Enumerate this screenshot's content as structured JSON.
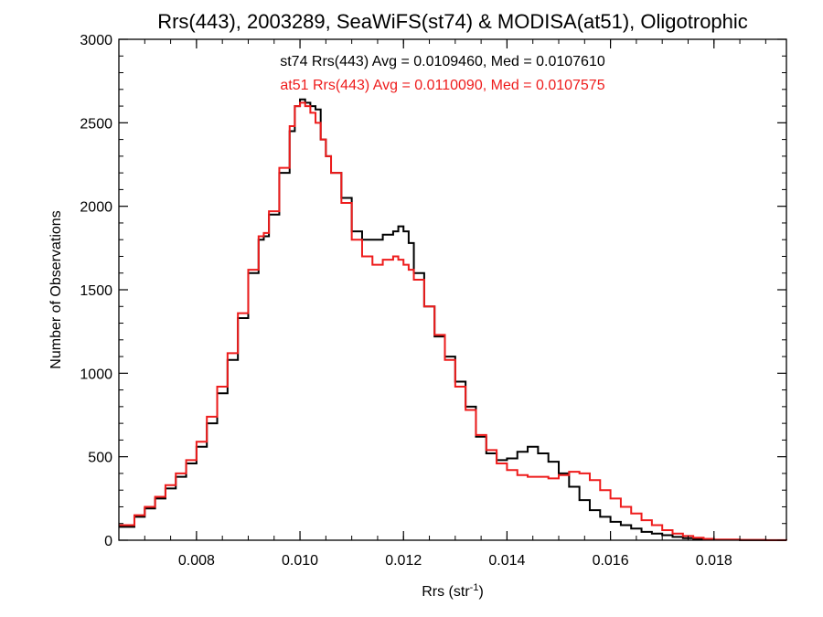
{
  "chart_data": {
    "type": "line",
    "title": "Rrs(443), 2003289, SeaWiFS(st74) & MODISA(at51), Oligotrophic",
    "xlabel_base": "Rrs (str",
    "xlabel_sup": "-1",
    "xlabel_end": ")",
    "ylabel": "Number of Observations",
    "xlim": [
      0.0065,
      0.0194
    ],
    "ylim": [
      0,
      3000
    ],
    "x_ticks": [
      0.008,
      0.01,
      0.012,
      0.014,
      0.016,
      0.018
    ],
    "x_tick_labels": [
      "0.008",
      "0.010",
      "0.012",
      "0.014",
      "0.016",
      "0.018"
    ],
    "y_ticks": [
      0,
      500,
      1000,
      1500,
      2000,
      2500,
      3000
    ],
    "y_tick_labels": [
      "0",
      "500",
      "1000",
      "1500",
      "2000",
      "2500",
      "3000"
    ],
    "grid": false,
    "annotations": [
      {
        "text": "st74 Rrs(443) Avg = 0.0109460, Med = 0.0107610",
        "color": "#000000"
      },
      {
        "text": "at51 Rrs(443) Avg = 0.0110090, Med = 0.0107575",
        "color": "#ee1c1c"
      }
    ],
    "series": [
      {
        "color": "#000000",
        "x": [
          0.0065,
          0.0068,
          0.007,
          0.0072,
          0.0074,
          0.0076,
          0.0078,
          0.008,
          0.0082,
          0.0084,
          0.0086,
          0.0088,
          0.009,
          0.0092,
          0.0093,
          0.0094,
          0.0096,
          0.0098,
          0.0099,
          0.01,
          0.0101,
          0.0102,
          0.0103,
          0.0104,
          0.0105,
          0.0106,
          0.0108,
          0.011,
          0.0112,
          0.0114,
          0.0116,
          0.0118,
          0.0119,
          0.012,
          0.0121,
          0.0122,
          0.0124,
          0.0126,
          0.0128,
          0.013,
          0.0132,
          0.0134,
          0.0136,
          0.0138,
          0.014,
          0.0142,
          0.0144,
          0.0146,
          0.0148,
          0.015,
          0.0152,
          0.0154,
          0.0156,
          0.0158,
          0.016,
          0.0162,
          0.0164,
          0.0166,
          0.0168,
          0.017,
          0.0172,
          0.0174,
          0.0176,
          0.0178,
          0.018,
          0.0185,
          0.019,
          0.0194
        ],
        "y": [
          80,
          140,
          190,
          250,
          310,
          380,
          460,
          560,
          700,
          880,
          1080,
          1330,
          1600,
          1800,
          1820,
          1950,
          2200,
          2450,
          2600,
          2640,
          2620,
          2600,
          2580,
          2400,
          2300,
          2200,
          2050,
          1850,
          1800,
          1800,
          1830,
          1850,
          1880,
          1850,
          1780,
          1600,
          1400,
          1220,
          1100,
          950,
          800,
          620,
          520,
          480,
          490,
          530,
          560,
          520,
          470,
          400,
          320,
          240,
          180,
          140,
          110,
          90,
          70,
          50,
          40,
          30,
          20,
          12,
          8,
          5,
          3,
          1,
          0,
          0
        ]
      },
      {
        "color": "#ee1c1c",
        "x": [
          0.0065,
          0.0068,
          0.007,
          0.0072,
          0.0074,
          0.0076,
          0.0078,
          0.008,
          0.0082,
          0.0084,
          0.0086,
          0.0088,
          0.009,
          0.0092,
          0.0093,
          0.0094,
          0.0096,
          0.0098,
          0.0099,
          0.01,
          0.0101,
          0.0102,
          0.0103,
          0.0104,
          0.0105,
          0.0106,
          0.0108,
          0.011,
          0.0112,
          0.0114,
          0.0116,
          0.0118,
          0.0119,
          0.012,
          0.0121,
          0.0122,
          0.0124,
          0.0126,
          0.0128,
          0.013,
          0.0132,
          0.0134,
          0.0136,
          0.0138,
          0.014,
          0.0142,
          0.0144,
          0.0146,
          0.0148,
          0.015,
          0.0152,
          0.0154,
          0.0156,
          0.0158,
          0.016,
          0.0162,
          0.0164,
          0.0166,
          0.0168,
          0.017,
          0.0172,
          0.0174,
          0.0176,
          0.0178,
          0.018,
          0.0185,
          0.019,
          0.0194
        ],
        "y": [
          90,
          150,
          200,
          260,
          330,
          400,
          480,
          590,
          740,
          920,
          1120,
          1360,
          1620,
          1820,
          1840,
          1970,
          2230,
          2480,
          2600,
          2620,
          2600,
          2560,
          2500,
          2400,
          2300,
          2200,
          2020,
          1800,
          1700,
          1650,
          1680,
          1700,
          1680,
          1650,
          1620,
          1560,
          1400,
          1230,
          1080,
          920,
          780,
          630,
          540,
          460,
          420,
          390,
          380,
          380,
          370,
          390,
          410,
          400,
          360,
          300,
          250,
          200,
          160,
          120,
          90,
          60,
          40,
          25,
          15,
          8,
          4,
          2,
          1,
          0
        ]
      }
    ]
  }
}
